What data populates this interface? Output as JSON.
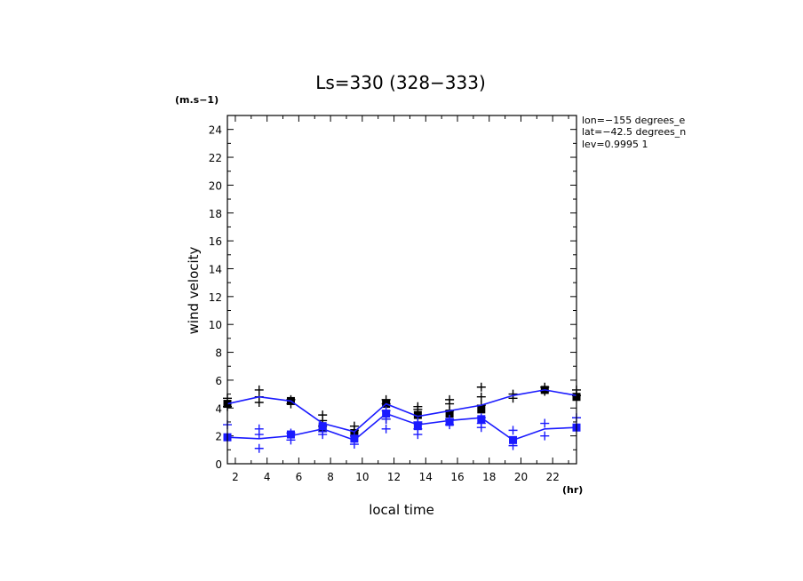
{
  "chart_data": {
    "type": "line",
    "title": "Ls=330 (328−333)",
    "xlabel": "local time",
    "ylabel": "wind velocity",
    "x_unit": "(hr)",
    "y_unit": "(m.s−1)",
    "xlim": [
      1.5,
      23.5
    ],
    "ylim": [
      0,
      25
    ],
    "x_ticks": [
      2,
      4,
      6,
      8,
      10,
      12,
      14,
      16,
      18,
      20,
      22
    ],
    "y_ticks": [
      0,
      2,
      4,
      6,
      8,
      10,
      12,
      14,
      16,
      18,
      20,
      22,
      24
    ],
    "grid": false,
    "annotations": [
      "lon=−155 degrees_e",
      "lat=−42.5 degrees_n",
      "lev=0.9995 1"
    ],
    "series": [
      {
        "color": "#000000",
        "line_color": "#1a1aff",
        "x": [
          1.5,
          3.5,
          5.5,
          7.5,
          9.5,
          11.5,
          13.5,
          15.5,
          17.5,
          19.5,
          21.5,
          23.5
        ],
        "values": [
          4.3,
          4.8,
          4.5,
          2.9,
          2.3,
          4.3,
          3.4,
          3.8,
          4.2,
          4.9,
          5.3,
          4.9
        ],
        "markers": [
          {
            "x": 1.5,
            "y": 4.3
          },
          {
            "x": 5.5,
            "y": 4.5
          },
          {
            "x": 7.5,
            "y": 2.6
          },
          {
            "x": 9.5,
            "y": 2.2
          },
          {
            "x": 11.5,
            "y": 4.3
          },
          {
            "x": 13.5,
            "y": 3.5
          },
          {
            "x": 15.5,
            "y": 3.6
          },
          {
            "x": 17.5,
            "y": 3.9
          },
          {
            "x": 21.5,
            "y": 5.3
          },
          {
            "x": 23.5,
            "y": 4.8
          }
        ],
        "spread": [
          {
            "x": 1.5,
            "y": [
              4.1,
              4.7
            ]
          },
          {
            "x": 3.5,
            "y": [
              4.4,
              4.8,
              5.3
            ]
          },
          {
            "x": 5.5,
            "y": [
              4.3,
              4.6
            ]
          },
          {
            "x": 7.5,
            "y": [
              2.7,
              3.1,
              3.5
            ]
          },
          {
            "x": 9.5,
            "y": [
              2.4,
              2.7
            ]
          },
          {
            "x": 11.5,
            "y": [
              3.2,
              4.3,
              4.6
            ]
          },
          {
            "x": 13.5,
            "y": [
              2.9,
              3.9,
              4.1
            ]
          },
          {
            "x": 15.5,
            "y": [
              3.8,
              4.3,
              4.6
            ]
          },
          {
            "x": 17.5,
            "y": [
              4.2,
              4.8,
              5.5
            ]
          },
          {
            "x": 19.5,
            "y": [
              4.7,
              5.0
            ]
          },
          {
            "x": 21.5,
            "y": [
              5.2,
              5.5
            ]
          },
          {
            "x": 23.5,
            "y": [
              4.9,
              5.3
            ]
          }
        ]
      },
      {
        "color": "#1a1aff",
        "line_color": "#1a1aff",
        "x": [
          1.5,
          3.5,
          5.5,
          7.5,
          9.5,
          11.5,
          13.5,
          15.5,
          17.5,
          19.5,
          21.5,
          23.5
        ],
        "values": [
          1.9,
          1.8,
          2.0,
          2.5,
          1.7,
          3.6,
          2.8,
          3.1,
          3.3,
          1.7,
          2.5,
          2.6
        ],
        "markers": [
          {
            "x": 1.5,
            "y": 1.9
          },
          {
            "x": 5.5,
            "y": 2.1
          },
          {
            "x": 7.5,
            "y": 2.7
          },
          {
            "x": 9.5,
            "y": 1.8
          },
          {
            "x": 11.5,
            "y": 3.6
          },
          {
            "x": 13.5,
            "y": 2.7
          },
          {
            "x": 15.5,
            "y": 3.0
          },
          {
            "x": 17.5,
            "y": 3.2
          },
          {
            "x": 19.5,
            "y": 1.7
          },
          {
            "x": 23.5,
            "y": 2.6
          }
        ],
        "spread": [
          {
            "x": 1.5,
            "y": [
              2.8
            ]
          },
          {
            "x": 3.5,
            "y": [
              1.1,
              2.1,
              2.5
            ]
          },
          {
            "x": 5.5,
            "y": [
              1.7,
              2.2
            ]
          },
          {
            "x": 7.5,
            "y": [
              2.1,
              2.3
            ]
          },
          {
            "x": 9.5,
            "y": [
              1.4,
              2.0
            ]
          },
          {
            "x": 11.5,
            "y": [
              2.5,
              3.2,
              3.8
            ]
          },
          {
            "x": 13.5,
            "y": [
              2.1,
              2.5,
              3.0
            ]
          },
          {
            "x": 15.5,
            "y": [
              2.8,
              3.2
            ]
          },
          {
            "x": 17.5,
            "y": [
              2.6,
              2.9,
              3.3
            ]
          },
          {
            "x": 19.5,
            "y": [
              1.3,
              2.4
            ]
          },
          {
            "x": 21.5,
            "y": [
              2.0,
              2.9
            ]
          },
          {
            "x": 23.5,
            "y": [
              3.3
            ]
          }
        ]
      }
    ]
  }
}
